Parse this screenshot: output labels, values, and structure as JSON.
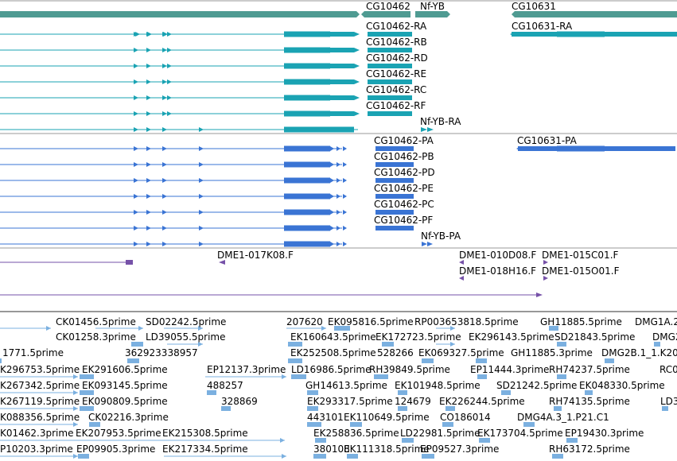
{
  "colors": {
    "gene": "#4f9b92",
    "transcript": "#1aa3b3",
    "protein": "#3a74d4",
    "clone": "#7651a8",
    "est": "#7bb0e0",
    "separator": "#888888"
  },
  "gene_track": {
    "labels": [
      "CG10462",
      "Nf-YB",
      "CG10631"
    ]
  },
  "transcript_track": {
    "labels": [
      "CG10462-RA",
      "CG10631-RA",
      "CG10462-RB",
      "CG10462-RD",
      "CG10462-RE",
      "CG10462-RC",
      "CG10462-RF",
      "Nf-YB-RA"
    ]
  },
  "protein_track": {
    "labels": [
      "CG10462-PA",
      "CG10631-PA",
      "CG10462-PB",
      "CG10462-PD",
      "CG10462-PE",
      "CG10462-PC",
      "CG10462-PF",
      "Nf-YB-PA"
    ]
  },
  "clone_track": {
    "labels": [
      "DME1-017K08.F",
      "DME1-010D08.F",
      "DME1-015C01.F",
      "DME1-018H16.F",
      "DME1-015O01.F"
    ]
  },
  "est_track": {
    "labels": [
      "CK01456.5prime",
      "SD02242.5prime",
      "207620",
      "EK095816.5prime",
      "RP003653818.5prime",
      "GH11885.5prime",
      "DMG1A.2",
      "CK01258.3prime",
      "LD39055.5prime",
      "EK160643.5prime",
      "EK172723.5prime",
      "EK296143.5prime",
      "SD21843.5prime",
      "DMG2",
      "1771.5prime",
      "362923338957",
      "EK252508.5prime",
      "528266",
      "EK069327.5prime",
      "GH11885.3prime",
      "DMG2B.1_1.K20",
      "K296753.5prime",
      "EK291606.5prime",
      "EP12137.3prime",
      "LD16986.5prime",
      "RH39849.5prime",
      "EP11444.3prime",
      "RH74237.5prime",
      "RC0",
      "K267342.5prime",
      "EK093145.5prime",
      "488257",
      "GH14613.5prime",
      "EK101948.5prime",
      "SD21242.5prime",
      "EK048330.5prime",
      "K267119.5prime",
      "EK090809.5prime",
      "328869",
      "EK293317.5prime",
      "124679",
      "EK226244.5prime",
      "RH74135.5prime",
      "LD3",
      "K088356.5prime",
      "CK02216.3prime",
      "443101",
      "EK110649.5prime",
      "CO186014",
      "DMG4A.3_1.P21.C1",
      "K01462.3prime",
      "EK207953.5prime",
      "EK215308.5prime",
      "EK258836.5prime",
      "LD22981.5prime",
      "EK173704.5prime",
      "EP19430.3prime",
      "P10203.3prime",
      "EP09905.3prime",
      "EK217334.5prime",
      "380108",
      "EK111318.5prime",
      "EP09527.3prime",
      "RH63172.5prime"
    ]
  }
}
